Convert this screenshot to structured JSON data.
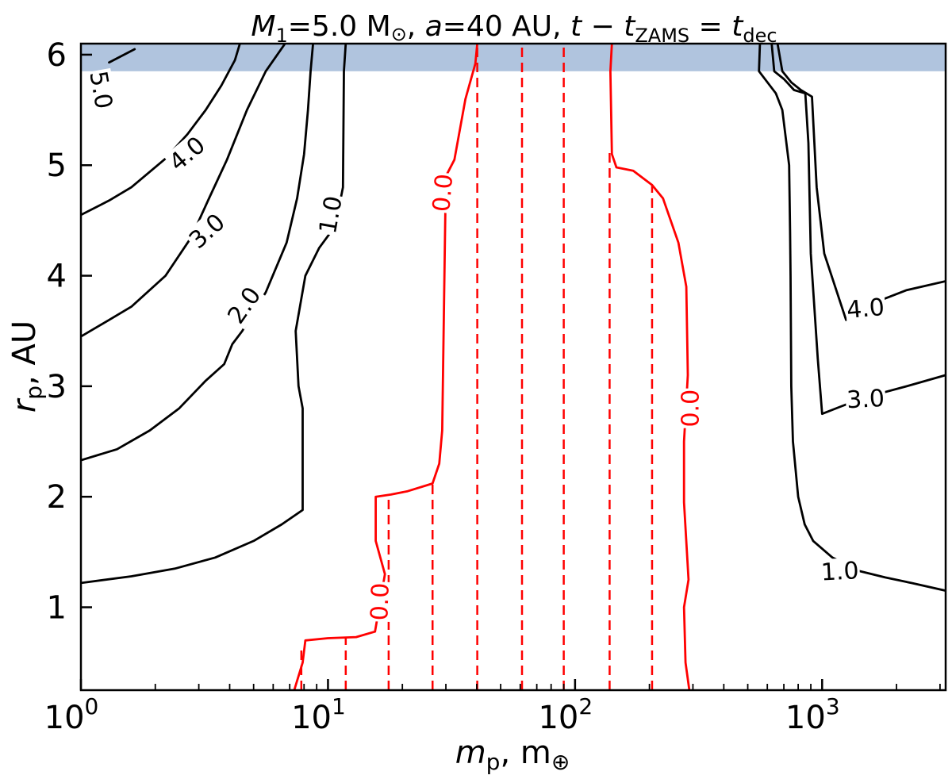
{
  "chart_data": {
    "type": "contour",
    "title": {
      "m1_sym": "M",
      "m1_sub": "1",
      "m1_val": "=5.0 M",
      "sun": "⊙",
      "a_sym": "a",
      "a_val": "=40 AU,",
      "t_sym": "t",
      "minus": " − ",
      "t2_sym": "t",
      "zams": "ZAMS",
      "equals": " = ",
      "t3_sym": "t",
      "dec": "dec"
    },
    "xlabel": {
      "sym": "m",
      "sub": "p",
      "unit": ", m",
      "earth": "⊕"
    },
    "ylabel": {
      "sym": "r",
      "sub": "p",
      "unit": ", AU"
    },
    "x_scale": "log",
    "xlim": [
      1,
      3162
    ],
    "ylim": [
      0.25,
      6.1
    ],
    "x_ticks": [
      {
        "value": 1,
        "mantissa": "10",
        "exp": "0"
      },
      {
        "value": 10,
        "mantissa": "10",
        "exp": "1"
      },
      {
        "value": 100,
        "mantissa": "10",
        "exp": "2"
      },
      {
        "value": 1000,
        "mantissa": "10",
        "exp": "3"
      }
    ],
    "y_ticks": [
      {
        "value": 1,
        "label": "1"
      },
      {
        "value": 2,
        "label": "2"
      },
      {
        "value": 3,
        "label": "3"
      },
      {
        "value": 4,
        "label": "4"
      },
      {
        "value": 5,
        "label": "5"
      },
      {
        "value": 6,
        "label": "6"
      }
    ],
    "shaded_band": {
      "y0": 5.85,
      "y1": 6.1,
      "color": "#b0c4de"
    },
    "contours": [
      {
        "level": "5.0",
        "color": "#000000",
        "points": [
          [
            1.65,
            6.05
          ],
          [
            1.3,
            5.93
          ]
        ]
      },
      {
        "level": "4.0",
        "color": "#000000",
        "points": [
          [
            1,
            4.55
          ],
          [
            1.3,
            4.68
          ],
          [
            1.6,
            4.8
          ],
          [
            2.2,
            5.06
          ],
          [
            2.7,
            5.28
          ],
          [
            3.2,
            5.5
          ],
          [
            3.7,
            5.72
          ],
          [
            4.2,
            5.95
          ],
          [
            4.4,
            6.1
          ]
        ]
      },
      {
        "level": "3.0",
        "color": "#000000",
        "points": [
          [
            1,
            3.45
          ],
          [
            1.3,
            3.6
          ],
          [
            1.6,
            3.72
          ],
          [
            2.2,
            4.0
          ],
          [
            2.8,
            4.35
          ],
          [
            3.3,
            4.7
          ],
          [
            3.9,
            5.05
          ],
          [
            4.7,
            5.5
          ],
          [
            5.6,
            5.85
          ],
          [
            6.7,
            6.1
          ]
        ]
      },
      {
        "level": "2.0",
        "color": "#000000",
        "points": [
          [
            1,
            2.33
          ],
          [
            1.4,
            2.43
          ],
          [
            1.9,
            2.6
          ],
          [
            2.5,
            2.8
          ],
          [
            3.2,
            3.05
          ],
          [
            3.8,
            3.2
          ],
          [
            4.1,
            3.38
          ],
          [
            4.5,
            3.5
          ],
          [
            5.6,
            3.85
          ],
          [
            6.8,
            4.3
          ],
          [
            7.5,
            4.7
          ],
          [
            8.0,
            5.1
          ],
          [
            8.3,
            5.5
          ],
          [
            8.5,
            5.85
          ],
          [
            8.7,
            6.1
          ]
        ]
      },
      {
        "level": "1.0",
        "color": "#000000",
        "points": [
          [
            1,
            1.22
          ],
          [
            1.6,
            1.28
          ],
          [
            2.4,
            1.35
          ],
          [
            3.5,
            1.45
          ],
          [
            5,
            1.6
          ],
          [
            6.5,
            1.75
          ],
          [
            7.9,
            1.88
          ],
          [
            7.9,
            2.8
          ],
          [
            7.6,
            3.0
          ],
          [
            7.4,
            3.5
          ],
          [
            8.1,
            4.0
          ],
          [
            9.2,
            4.25
          ],
          [
            10.7,
            4.45
          ],
          [
            11.5,
            4.8
          ],
          [
            11.6,
            5.85
          ],
          [
            11.8,
            6.1
          ]
        ]
      },
      {
        "level": "0.0",
        "color": "#ff0000",
        "points": [
          [
            7.3,
            0.25
          ],
          [
            7.9,
            0.5
          ],
          [
            8.1,
            0.7
          ],
          [
            10,
            0.72
          ],
          [
            13,
            0.73
          ],
          [
            15.5,
            0.78
          ],
          [
            17,
            1.3
          ],
          [
            15.6,
            1.6
          ],
          [
            15.6,
            2.0
          ],
          [
            18,
            2.02
          ],
          [
            21,
            2.05
          ],
          [
            26.5,
            2.12
          ],
          [
            28.2,
            2.3
          ],
          [
            29,
            2.6
          ],
          [
            30,
            4.9
          ],
          [
            32.5,
            5.05
          ],
          [
            36,
            5.6
          ],
          [
            39.5,
            5.92
          ],
          [
            40.2,
            6.1
          ]
        ]
      },
      {
        "level": "0.0",
        "color": "#ff0000",
        "points": [
          [
            141,
            6.1
          ],
          [
            139,
            5.85
          ],
          [
            141,
            5.1
          ],
          [
            147,
            4.98
          ],
          [
            172,
            4.95
          ],
          [
            205,
            4.82
          ],
          [
            227,
            4.7
          ],
          [
            262,
            4.3
          ],
          [
            282,
            3.9
          ],
          [
            286,
            3.1
          ],
          [
            276,
            2.5
          ],
          [
            276,
            1.95
          ],
          [
            288,
            1.25
          ],
          [
            276,
            1.0
          ],
          [
            280,
            0.5
          ],
          [
            290,
            0.25
          ]
        ]
      },
      {
        "level": "1.0",
        "color": "#000000",
        "points": [
          [
            560,
            6.1
          ],
          [
            555,
            5.85
          ],
          [
            650,
            5.65
          ],
          [
            690,
            5.5
          ],
          [
            735,
            5.0
          ],
          [
            742,
            4.4
          ],
          [
            745,
            4.0
          ],
          [
            750,
            3.0
          ],
          [
            762,
            2.5
          ],
          [
            800,
            2.0
          ],
          [
            850,
            1.75
          ],
          [
            920,
            1.6
          ],
          [
            1100,
            1.45
          ],
          [
            1400,
            1.33
          ],
          [
            1800,
            1.27
          ],
          [
            2300,
            1.22
          ],
          [
            3162,
            1.15
          ]
        ]
      },
      {
        "level": "3.0",
        "color": "#000000",
        "points": [
          [
            625,
            6.1
          ],
          [
            640,
            5.85
          ],
          [
            700,
            5.78
          ],
          [
            770,
            5.68
          ],
          [
            855,
            5.65
          ],
          [
            880,
            5.2
          ],
          [
            900,
            4.2
          ],
          [
            960,
            3.25
          ],
          [
            1000,
            2.75
          ],
          [
            1200,
            2.82
          ],
          [
            1500,
            2.9
          ],
          [
            2200,
            3.0
          ],
          [
            3162,
            3.1
          ]
        ]
      },
      {
        "level": "4.0",
        "color": "#000000",
        "points": [
          [
            660,
            6.1
          ],
          [
            690,
            5.85
          ],
          [
            750,
            5.75
          ],
          [
            820,
            5.68
          ],
          [
            910,
            5.62
          ],
          [
            950,
            4.8
          ],
          [
            1020,
            4.2
          ],
          [
            1250,
            3.6
          ],
          [
            1600,
            3.75
          ],
          [
            2200,
            3.87
          ],
          [
            3162,
            3.95
          ]
        ]
      }
    ],
    "contour_labels": [
      {
        "text": "5.0",
        "x": 1.2,
        "y": 5.68,
        "angle": 80,
        "color": "#000000"
      },
      {
        "text": "4.0",
        "x": 2.7,
        "y": 5.1,
        "angle": -40,
        "color": "#000000"
      },
      {
        "text": "3.0",
        "x": 3.25,
        "y": 4.4,
        "angle": -42,
        "color": "#000000"
      },
      {
        "text": "2.0",
        "x": 4.6,
        "y": 3.73,
        "angle": -55,
        "color": "#000000"
      },
      {
        "text": "1.0",
        "x": 10.3,
        "y": 4.55,
        "angle": -80,
        "color": "#000000"
      },
      {
        "text": "0.0",
        "x": 29.3,
        "y": 4.75,
        "angle": -85,
        "color": "#ff0000"
      },
      {
        "text": "0.0",
        "x": 16.3,
        "y": 1.05,
        "angle": -88,
        "color": "#ff0000"
      },
      {
        "text": "0.0",
        "x": 295,
        "y": 2.8,
        "angle": -90,
        "color": "#ff0000"
      },
      {
        "text": "4.0",
        "x": 1500,
        "y": 3.7,
        "angle": -5,
        "color": "#000000"
      },
      {
        "text": "3.0",
        "x": 1500,
        "y": 2.88,
        "angle": -3,
        "color": "#000000"
      },
      {
        "text": "1.0",
        "x": 1180,
        "y": 1.32,
        "angle": -3,
        "color": "#000000"
      }
    ],
    "dashed_lines": [
      {
        "x": 7.8,
        "y0": 0.25,
        "y1": 0.65,
        "color": "#ff0000"
      },
      {
        "x": 11.8,
        "y0": 0.25,
        "y1": 0.72,
        "color": "#ff0000"
      },
      {
        "x": 17.6,
        "y0": 0.25,
        "y1": 2.0,
        "color": "#ff0000"
      },
      {
        "x": 26.5,
        "y0": 0.25,
        "y1": 2.12,
        "color": "#ff0000"
      },
      {
        "x": 40.2,
        "y0": 0.25,
        "y1": 6.1,
        "color": "#ff0000"
      },
      {
        "x": 61,
        "y0": 0.25,
        "y1": 6.1,
        "color": "#ff0000"
      },
      {
        "x": 90,
        "y0": 0.25,
        "y1": 6.1,
        "color": "#ff0000"
      },
      {
        "x": 138,
        "y0": 0.25,
        "y1": 5.15,
        "color": "#ff0000"
      },
      {
        "x": 205,
        "y0": 0.25,
        "y1": 4.82,
        "color": "#ff0000"
      }
    ]
  }
}
